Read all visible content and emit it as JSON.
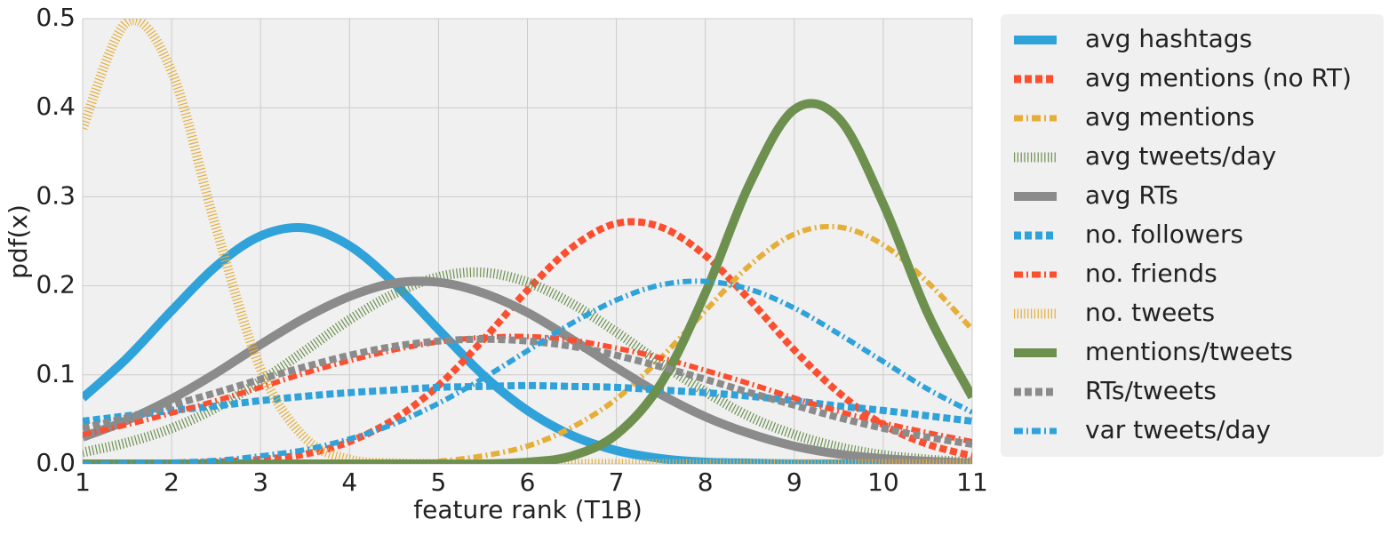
{
  "chart_data": {
    "type": "line",
    "xlabel": "feature rank (T1B)",
    "ylabel": "pdf(x)",
    "x": [
      1,
      1.5,
      2,
      2.5,
      3,
      3.5,
      4,
      4.5,
      5,
      5.5,
      6,
      6.5,
      7,
      7.5,
      8,
      8.5,
      9,
      9.5,
      10,
      10.5,
      11
    ],
    "xlim": [
      1,
      11
    ],
    "xticks": [
      1,
      2,
      3,
      4,
      5,
      6,
      7,
      8,
      9,
      10,
      11
    ],
    "ylim": [
      0,
      0.5
    ],
    "yticks": [
      {
        "value": 0,
        "label": "0.0"
      },
      0.1,
      0.2,
      0.3,
      0.4,
      0.5
    ],
    "grid": true,
    "legend": "outside-right",
    "series": [
      {
        "name": "avg hashtags",
        "color": "#30a2da",
        "linestyle": "solid",
        "values": [
          0.074,
          0.119,
          0.172,
          0.222,
          0.256,
          0.265,
          0.245,
          0.203,
          0.151,
          0.1,
          0.06,
          0.032,
          0.015,
          0.006,
          0.002,
          0.001,
          0,
          0,
          0,
          0,
          0
        ]
      },
      {
        "name": "avg mentions (no RT)",
        "color": "#fc4f30",
        "linestyle": "dashed",
        "values": [
          0,
          0,
          0.001,
          0.002,
          0.005,
          0.011,
          0.025,
          0.05,
          0.088,
          0.139,
          0.195,
          0.243,
          0.27,
          0.266,
          0.234,
          0.184,
          0.128,
          0.08,
          0.044,
          0.022,
          0.009
        ]
      },
      {
        "name": "avg mentions",
        "color": "#e5ae38",
        "linestyle": "dashdot",
        "values": [
          0,
          0,
          0,
          0,
          0,
          0,
          0,
          0.001,
          0.003,
          0.009,
          0.02,
          0.041,
          0.073,
          0.119,
          0.172,
          0.223,
          0.258,
          0.266,
          0.246,
          0.204,
          0.151
        ]
      },
      {
        "name": "avg tweets/day",
        "color": "#6d904f",
        "linestyle": "dotted",
        "values": [
          0.013,
          0.024,
          0.04,
          0.063,
          0.093,
          0.127,
          0.162,
          0.191,
          0.21,
          0.215,
          0.204,
          0.18,
          0.148,
          0.113,
          0.081,
          0.053,
          0.033,
          0.019,
          0.01,
          0.005,
          0.002
        ]
      },
      {
        "name": "avg RTs",
        "color": "#8b8b8b",
        "linestyle": "solid",
        "values": [
          0.03,
          0.049,
          0.073,
          0.102,
          0.134,
          0.164,
          0.188,
          0.203,
          0.204,
          0.192,
          0.17,
          0.14,
          0.108,
          0.078,
          0.053,
          0.034,
          0.02,
          0.011,
          0.006,
          0.003,
          0.001
        ]
      },
      {
        "name": "no. followers",
        "color": "#30a2da",
        "linestyle": "dashed",
        "values": [
          0.048,
          0.054,
          0.06,
          0.065,
          0.071,
          0.076,
          0.08,
          0.083,
          0.086,
          0.087,
          0.088,
          0.087,
          0.086,
          0.083,
          0.08,
          0.076,
          0.071,
          0.065,
          0.06,
          0.054,
          0.048
        ]
      },
      {
        "name": "no. friends",
        "color": "#fc4f30",
        "linestyle": "dashdot",
        "values": [
          0.033,
          0.044,
          0.057,
          0.071,
          0.086,
          0.102,
          0.116,
          0.128,
          0.137,
          0.142,
          0.143,
          0.139,
          0.13,
          0.119,
          0.105,
          0.09,
          0.074,
          0.059,
          0.046,
          0.035,
          0.025
        ]
      },
      {
        "name": "no. tweets",
        "color": "#e5ae38",
        "linestyle": "dotted",
        "values": [
          0.377,
          0.496,
          0.441,
          0.265,
          0.107,
          0.029,
          0.005,
          0.001,
          0,
          0,
          0,
          0,
          0,
          0,
          0,
          0,
          0,
          0,
          0,
          0,
          0
        ]
      },
      {
        "name": "mentions/tweets",
        "color": "#6d904f",
        "linestyle": "solid",
        "values": [
          0,
          0,
          0,
          0,
          0,
          0,
          0,
          0,
          0,
          0,
          0.002,
          0.009,
          0.033,
          0.09,
          0.192,
          0.315,
          0.398,
          0.388,
          0.292,
          0.169,
          0.075
        ]
      },
      {
        "name": "RTs/tweets",
        "color": "#8b8b8b",
        "linestyle": "dashed",
        "values": [
          0.04,
          0.052,
          0.066,
          0.08,
          0.095,
          0.109,
          0.122,
          0.132,
          0.138,
          0.14,
          0.138,
          0.132,
          0.122,
          0.109,
          0.095,
          0.08,
          0.066,
          0.052,
          0.04,
          0.03,
          0.022
        ]
      },
      {
        "name": "var tweets/day",
        "color": "#30a2da",
        "linestyle": "dashdot",
        "values": [
          0,
          0.001,
          0.002,
          0.004,
          0.009,
          0.016,
          0.028,
          0.045,
          0.068,
          0.096,
          0.127,
          0.158,
          0.184,
          0.201,
          0.205,
          0.196,
          0.175,
          0.146,
          0.115,
          0.084,
          0.058
        ]
      }
    ]
  }
}
